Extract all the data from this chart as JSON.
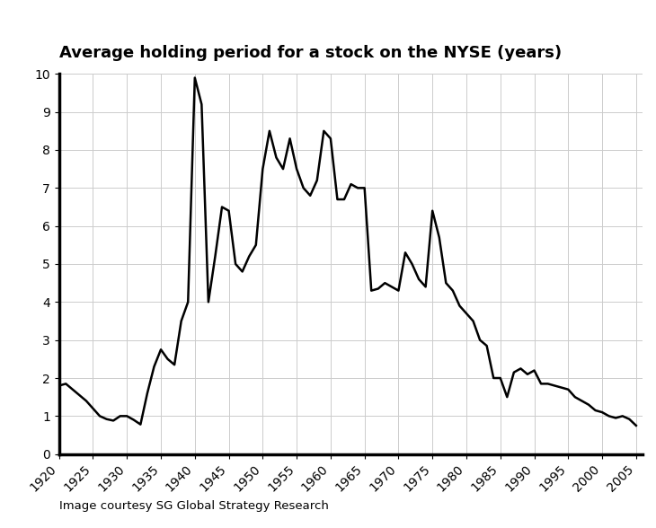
{
  "title": "Average holding period for a stock on the NYSE (years)",
  "caption": "Image courtesy SG Global Strategy Research",
  "xlim": [
    1920,
    2006
  ],
  "ylim": [
    0,
    10
  ],
  "xticks": [
    1920,
    1925,
    1930,
    1935,
    1940,
    1945,
    1950,
    1955,
    1960,
    1965,
    1970,
    1975,
    1980,
    1985,
    1990,
    1995,
    2000,
    2005
  ],
  "yticks": [
    0,
    1,
    2,
    3,
    4,
    5,
    6,
    7,
    8,
    9,
    10
  ],
  "line_color": "#000000",
  "line_width": 1.8,
  "background_color": "#ffffff",
  "years": [
    1920,
    1921,
    1922,
    1923,
    1924,
    1925,
    1926,
    1927,
    1928,
    1929,
    1930,
    1931,
    1932,
    1933,
    1934,
    1935,
    1936,
    1937,
    1938,
    1939,
    1940,
    1941,
    1942,
    1943,
    1944,
    1945,
    1946,
    1947,
    1948,
    1949,
    1950,
    1951,
    1952,
    1953,
    1954,
    1955,
    1956,
    1957,
    1958,
    1959,
    1960,
    1961,
    1962,
    1963,
    1964,
    1965,
    1966,
    1967,
    1968,
    1969,
    1970,
    1971,
    1972,
    1973,
    1974,
    1975,
    1976,
    1977,
    1978,
    1979,
    1980,
    1981,
    1982,
    1983,
    1984,
    1985,
    1986,
    1987,
    1988,
    1989,
    1990,
    1991,
    1992,
    1993,
    1994,
    1995,
    1996,
    1997,
    1998,
    1999,
    2000,
    2001,
    2002,
    2003,
    2004,
    2005
  ],
  "values": [
    1.8,
    1.85,
    1.7,
    1.55,
    1.4,
    1.2,
    1.0,
    0.92,
    0.88,
    1.0,
    1.0,
    0.9,
    0.78,
    1.6,
    2.3,
    2.75,
    2.5,
    2.35,
    3.5,
    4.0,
    9.9,
    9.2,
    4.0,
    5.2,
    6.5,
    6.4,
    5.0,
    4.8,
    5.2,
    5.5,
    7.5,
    8.5,
    7.8,
    7.5,
    8.3,
    7.5,
    7.0,
    6.8,
    7.2,
    8.5,
    8.3,
    6.7,
    6.7,
    7.1,
    7.0,
    7.0,
    4.3,
    4.35,
    4.5,
    4.4,
    4.3,
    5.3,
    5.0,
    4.6,
    4.4,
    6.4,
    5.7,
    4.5,
    4.3,
    3.9,
    3.7,
    3.5,
    3.0,
    2.85,
    2.0,
    2.0,
    1.5,
    2.15,
    2.25,
    2.1,
    2.2,
    1.85,
    1.85,
    1.8,
    1.75,
    1.7,
    1.5,
    1.4,
    1.3,
    1.15,
    1.1,
    1.0,
    0.95,
    1.0,
    0.92,
    0.75
  ]
}
